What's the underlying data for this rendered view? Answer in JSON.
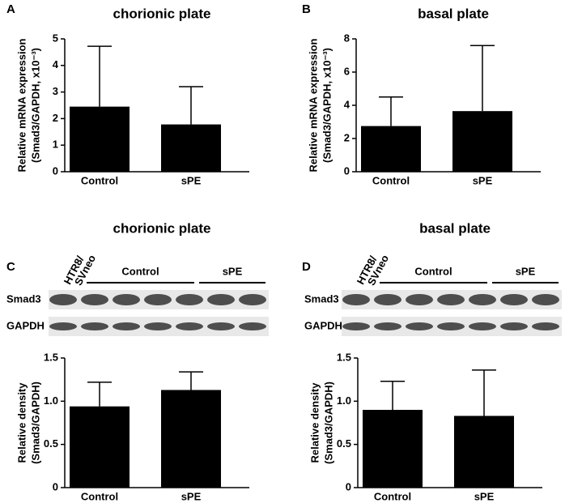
{
  "chart_data": [
    {
      "panel": "A",
      "type": "bar",
      "title": "chorionic plate",
      "ylabel": [
        "Relative mRNA expression",
        "(Smad3/GAPDH, x10⁻³)"
      ],
      "categories": [
        "Control",
        "sPE"
      ],
      "values": [
        2.45,
        1.78
      ],
      "errors": [
        2.27,
        1.42
      ],
      "color": "#000000",
      "ylim": [
        0,
        5
      ],
      "yticks": [
        0,
        1,
        2,
        3,
        4,
        5
      ]
    },
    {
      "panel": "B",
      "type": "bar",
      "title": "basal plate",
      "ylabel": [
        "Relative mRNA expression",
        "(Smad3/GAPDH, x10⁻³)"
      ],
      "categories": [
        "Control",
        "sPE"
      ],
      "values": [
        2.75,
        3.65
      ],
      "errors": [
        1.75,
        3.95
      ],
      "color": "#000000",
      "ylim": [
        0,
        8
      ],
      "yticks": [
        0,
        2,
        4,
        6,
        8
      ]
    },
    {
      "panel": "C",
      "type": "bar",
      "title": "chorionic plate",
      "ylabel": [
        "Relative density",
        "(Smad3/GAPDH)"
      ],
      "blot": {
        "cell_line": [
          "HTR8/",
          "SVneo"
        ],
        "groups": [
          "Control",
          "sPE"
        ],
        "rows": [
          "Smad3",
          "GAPDH"
        ]
      },
      "categories": [
        "Control",
        "sPE"
      ],
      "values": [
        0.94,
        1.13
      ],
      "errors": [
        0.28,
        0.21
      ],
      "color": "#000000",
      "ylim": [
        0,
        1.5
      ],
      "yticks": [
        0,
        0.5,
        {
          "value": 1.0,
          "label": "1.0"
        },
        1.5
      ]
    },
    {
      "panel": "D",
      "type": "bar",
      "title": "basal plate",
      "ylabel": [
        "Relative density",
        "(Smad3/GAPDH)"
      ],
      "blot": {
        "cell_line": [
          "HTR8/",
          "SVneo"
        ],
        "groups": [
          "Control",
          "sPE"
        ],
        "rows": [
          "Smad3",
          "GAPDH"
        ]
      },
      "categories": [
        "Control",
        "sPE"
      ],
      "values": [
        0.9,
        0.83
      ],
      "errors": [
        0.33,
        0.53
      ],
      "color": "#000000",
      "ylim": [
        0,
        1.5
      ],
      "yticks": [
        0,
        0.5,
        {
          "value": 1.0,
          "label": "1.0"
        },
        1.5
      ]
    }
  ]
}
